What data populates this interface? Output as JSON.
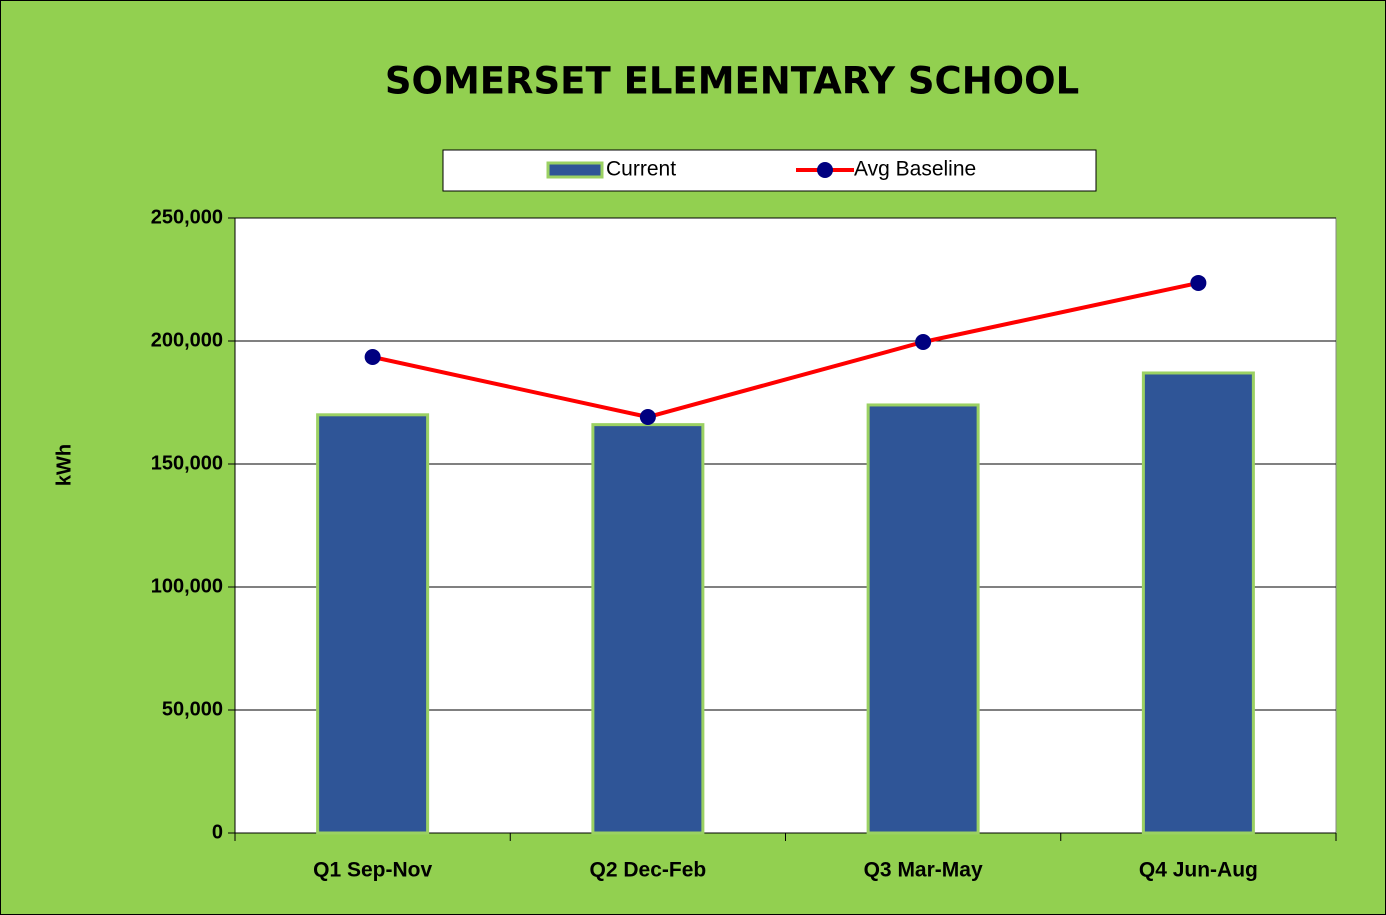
{
  "chart_data": {
    "type": "combo",
    "title": "SOMERSET ELEMENTARY SCHOOL",
    "y_label": "kWh",
    "categories": [
      "Q1 Sep-Nov",
      "Q2 Dec-Feb",
      "Q3 Mar-May",
      "Q4 Jun-Aug"
    ],
    "series": [
      {
        "name": "Current",
        "type": "bar",
        "color": "#2f5597",
        "values": [
          170000,
          166000,
          174000,
          187000
        ]
      },
      {
        "name": "Avg Baseline",
        "type": "line",
        "color": "#ff0000",
        "marker_color": "#000080",
        "values": [
          193500,
          169100,
          199600,
          223600
        ]
      }
    ],
    "ylim": [
      0,
      250000
    ],
    "yticks": [
      0,
      {
        "value": 50000,
        "label": "50,000"
      },
      {
        "value": 100000,
        "label": "100,000"
      },
      {
        "value": 150000,
        "label": "150,000"
      },
      {
        "value": 200000,
        "label": "200,000"
      },
      {
        "value": 250000,
        "label": "250,000"
      }
    ],
    "grid": true,
    "legend": "top"
  }
}
